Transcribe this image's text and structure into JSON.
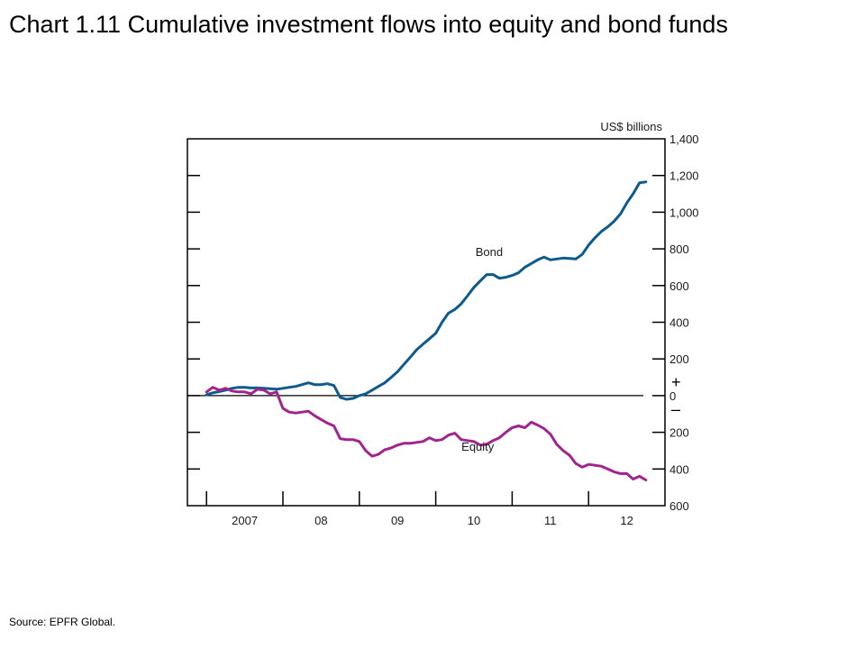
{
  "title": "Chart 1.11  Cumulative investment flows into equity and bond funds",
  "source": "Source:  EPFR Global.",
  "colors": {
    "bond": "#0d5a8c",
    "equity": "#a3238e",
    "axis": "#000000"
  },
  "chart_data": {
    "type": "line",
    "title": "Chart 1.11  Cumulative investment flows into equity and bond funds",
    "unit_label": "US$ billions",
    "plus_sign": "+",
    "minus_sign": "–",
    "ylim": [
      -600,
      1400
    ],
    "y_ticks": [
      -600,
      -400,
      -200,
      0,
      200,
      400,
      600,
      800,
      1000,
      1200,
      1400
    ],
    "y_tick_labels": [
      "600",
      "400",
      "200",
      "0",
      "200",
      "400",
      "600",
      "800",
      "1,000",
      "1,200",
      "1,400"
    ],
    "x_range": [
      2006.75,
      2013.0
    ],
    "x_ticks": [
      2007.0,
      2008.0,
      2009.0,
      2010.0,
      2011.0,
      2012.0
    ],
    "x_tick_labels": [
      "2007",
      "08",
      "09",
      "10",
      "11",
      "12"
    ],
    "x_label_positions": [
      2007.5,
      2008.5,
      2009.5,
      2010.5,
      2011.5,
      2012.5
    ],
    "grid": false,
    "series": [
      {
        "name": "Bond",
        "label_at": [
          2010.7,
          760
        ],
        "x": [
          2007.0,
          2007.083,
          2007.167,
          2007.25,
          2007.333,
          2007.417,
          2007.5,
          2007.583,
          2007.667,
          2007.75,
          2007.833,
          2007.917,
          2008.0,
          2008.083,
          2008.167,
          2008.25,
          2008.333,
          2008.417,
          2008.5,
          2008.583,
          2008.667,
          2008.75,
          2008.833,
          2008.917,
          2009.0,
          2009.083,
          2009.167,
          2009.25,
          2009.333,
          2009.417,
          2009.5,
          2009.583,
          2009.667,
          2009.75,
          2009.833,
          2009.917,
          2010.0,
          2010.083,
          2010.167,
          2010.25,
          2010.333,
          2010.417,
          2010.5,
          2010.583,
          2010.667,
          2010.75,
          2010.833,
          2010.917,
          2011.0,
          2011.083,
          2011.167,
          2011.25,
          2011.333,
          2011.417,
          2011.5,
          2011.583,
          2011.667,
          2011.75,
          2011.833,
          2011.917,
          2012.0,
          2012.083,
          2012.167,
          2012.25,
          2012.333,
          2012.417,
          2012.5,
          2012.583,
          2012.667,
          2012.75
        ],
        "y": [
          5,
          15,
          22,
          30,
          40,
          45,
          45,
          42,
          42,
          40,
          38,
          35,
          40,
          45,
          50,
          60,
          70,
          60,
          60,
          65,
          55,
          -10,
          -20,
          -15,
          0,
          10,
          30,
          50,
          70,
          100,
          130,
          170,
          210,
          250,
          280,
          310,
          340,
          400,
          450,
          470,
          500,
          545,
          590,
          625,
          660,
          660,
          640,
          645,
          655,
          670,
          700,
          720,
          740,
          755,
          740,
          745,
          750,
          748,
          745,
          770,
          820,
          860,
          895,
          920,
          950,
          990,
          1050,
          1100,
          1160,
          1165
        ]
      },
      {
        "name": "Equity",
        "label_at": [
          2010.55,
          -300
        ],
        "x": [
          2007.0,
          2007.083,
          2007.167,
          2007.25,
          2007.333,
          2007.417,
          2007.5,
          2007.583,
          2007.667,
          2007.75,
          2007.833,
          2007.917,
          2008.0,
          2008.083,
          2008.167,
          2008.25,
          2008.333,
          2008.417,
          2008.5,
          2008.583,
          2008.667,
          2008.75,
          2008.833,
          2008.917,
          2009.0,
          2009.083,
          2009.167,
          2009.25,
          2009.333,
          2009.417,
          2009.5,
          2009.583,
          2009.667,
          2009.75,
          2009.833,
          2009.917,
          2010.0,
          2010.083,
          2010.167,
          2010.25,
          2010.333,
          2010.417,
          2010.5,
          2010.583,
          2010.667,
          2010.75,
          2010.833,
          2010.917,
          2011.0,
          2011.083,
          2011.167,
          2011.25,
          2011.333,
          2011.417,
          2011.5,
          2011.583,
          2011.667,
          2011.75,
          2011.833,
          2011.917,
          2012.0,
          2012.083,
          2012.167,
          2012.25,
          2012.333,
          2012.417,
          2012.5,
          2012.583,
          2012.667,
          2012.75
        ],
        "y": [
          20,
          45,
          30,
          40,
          25,
          20,
          20,
          10,
          35,
          30,
          10,
          20,
          -70,
          -90,
          -95,
          -90,
          -85,
          -110,
          -130,
          -150,
          -165,
          -235,
          -240,
          -240,
          -250,
          -300,
          -330,
          -320,
          -295,
          -285,
          -270,
          -260,
          -260,
          -255,
          -250,
          -230,
          -245,
          -240,
          -215,
          -205,
          -240,
          -245,
          -250,
          -270,
          -265,
          -245,
          -230,
          -200,
          -175,
          -165,
          -175,
          -145,
          -160,
          -180,
          -210,
          -265,
          -300,
          -325,
          -370,
          -390,
          -375,
          -380,
          -385,
          -400,
          -415,
          -425,
          -425,
          -455,
          -440,
          -460
        ]
      }
    ]
  }
}
